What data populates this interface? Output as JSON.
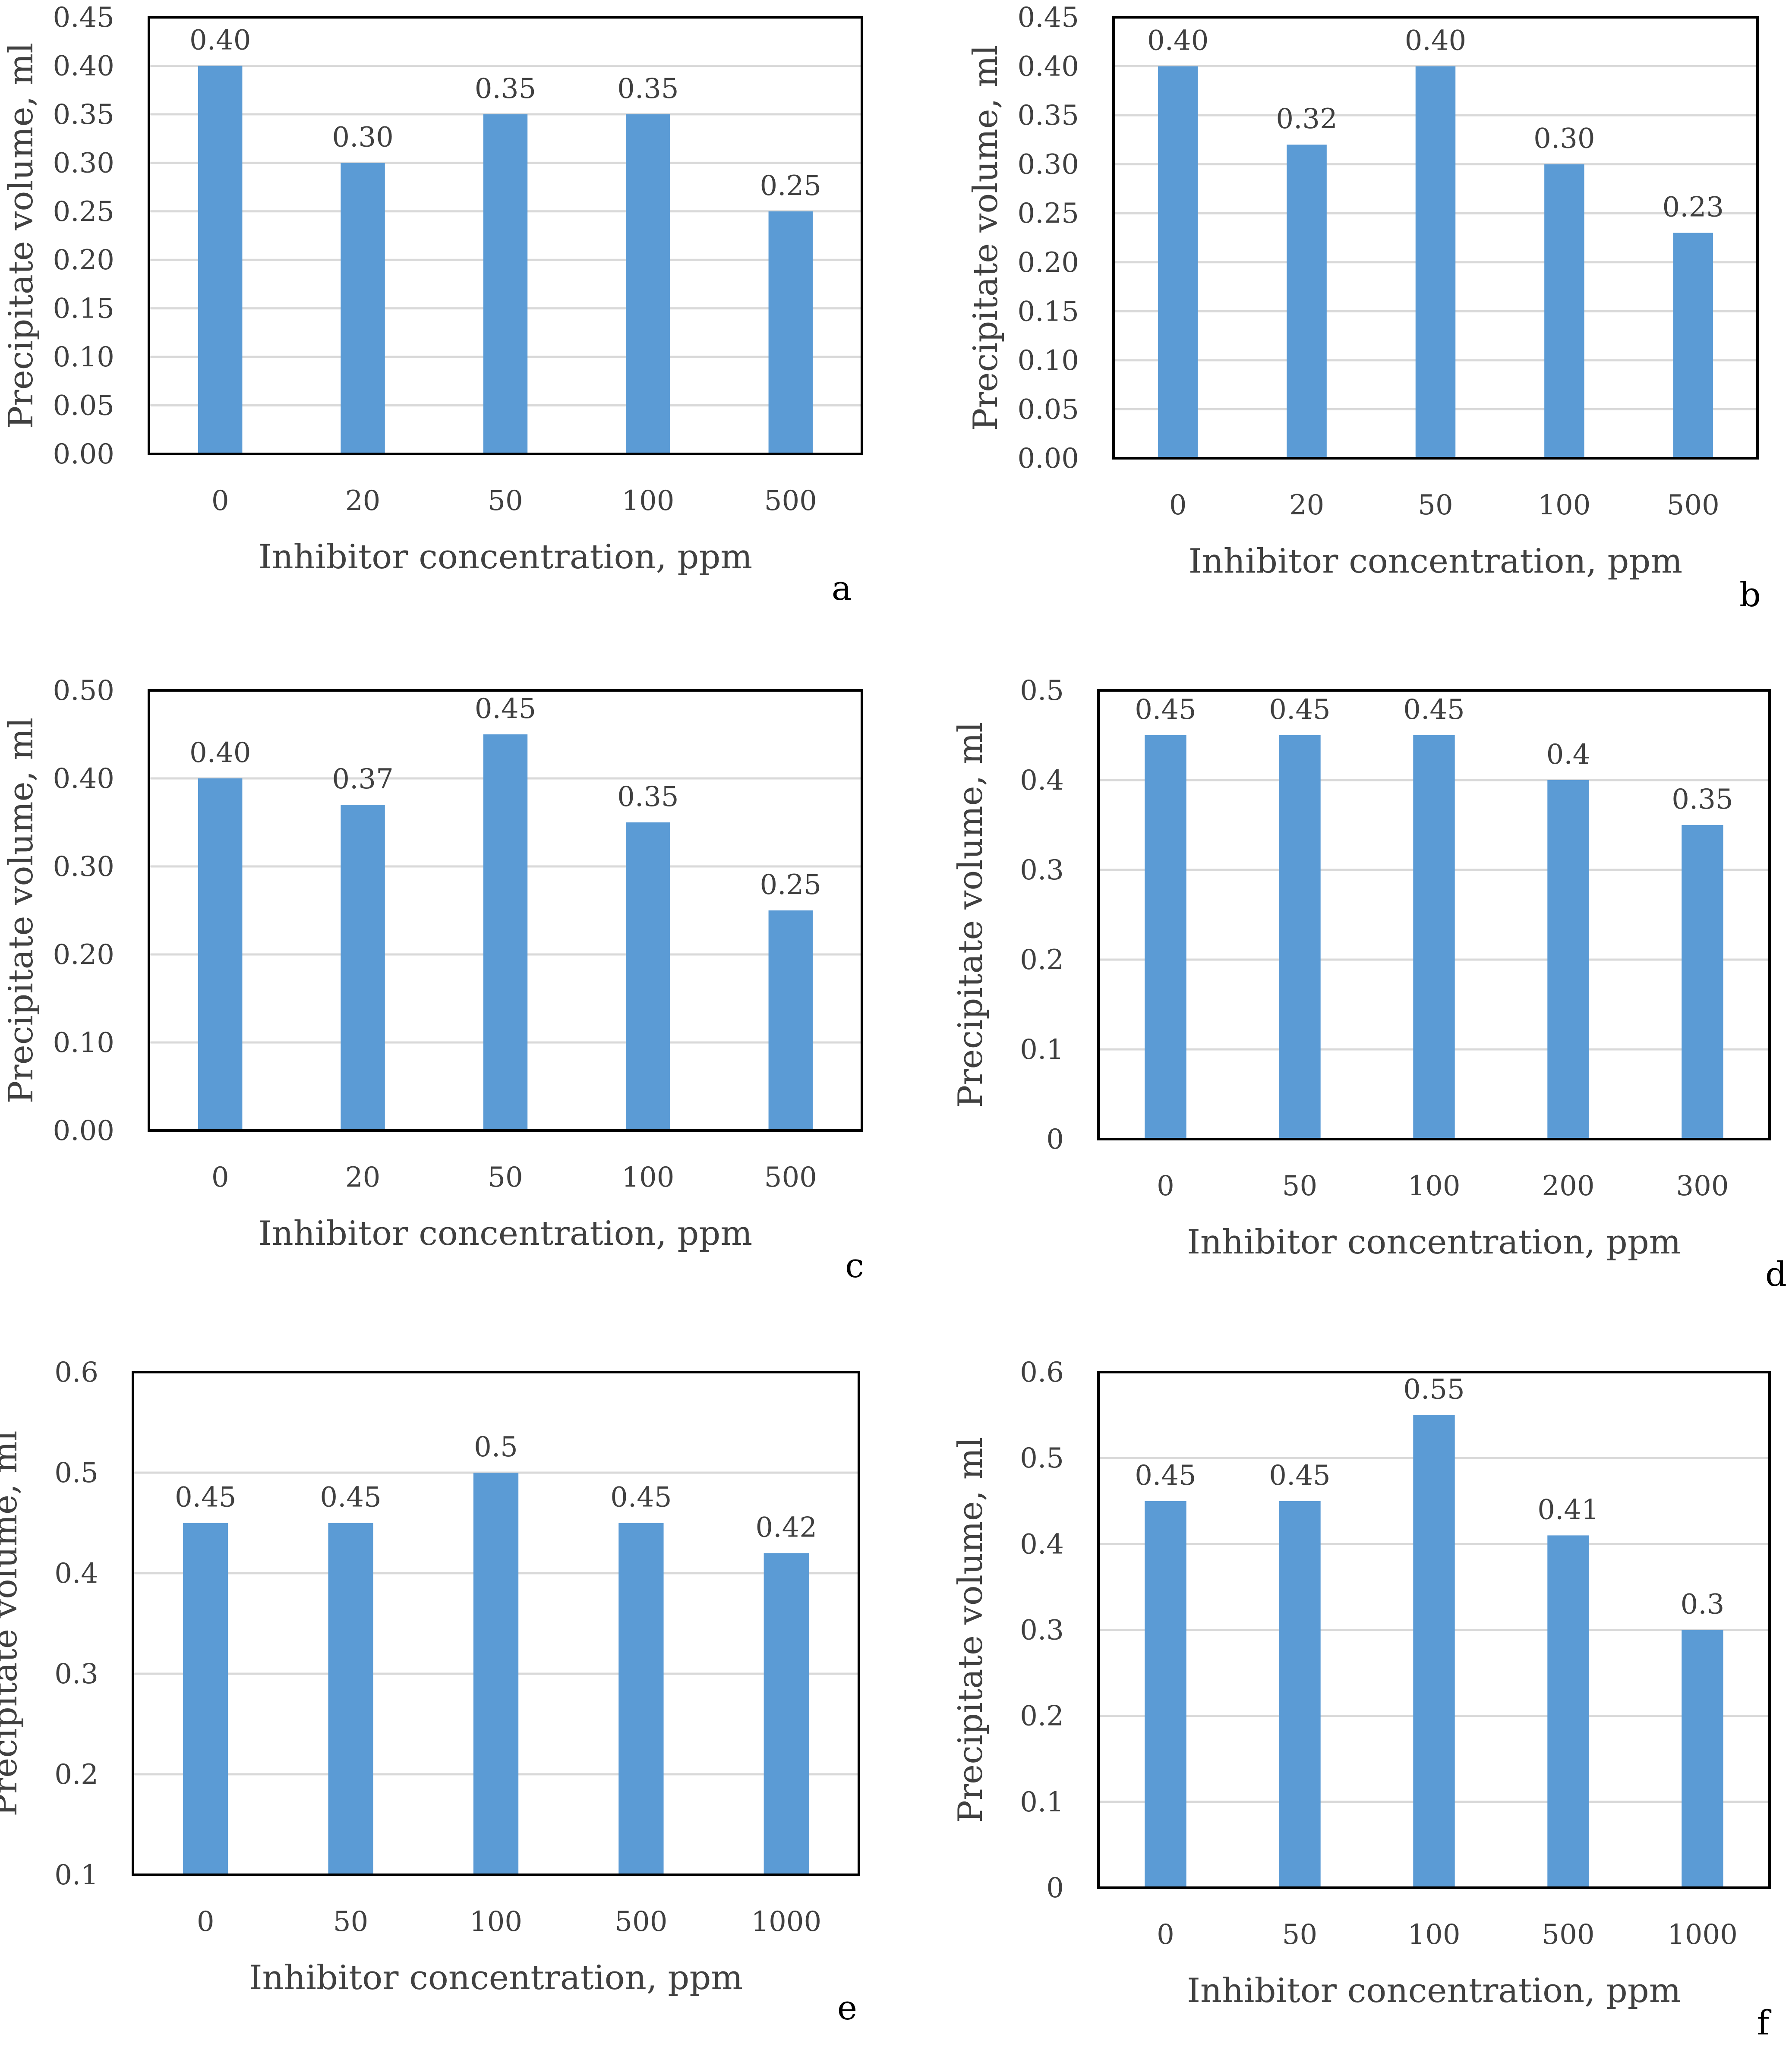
{
  "colors": {
    "bar": "#5b9bd5",
    "grid": "#d9d9d9",
    "frame": "#000000",
    "text": "#404040",
    "label": "#000000"
  },
  "chart_data": [
    {
      "panel": "a",
      "type": "bar",
      "xlabel": "Inhibitor concentration, ppm",
      "ylabel": "Precipitate volume, ml",
      "categories": [
        "0",
        "20",
        "50",
        "100",
        "500"
      ],
      "values": [
        0.4,
        0.3,
        0.35,
        0.35,
        0.25
      ],
      "value_labels": [
        "0.40",
        "0.30",
        "0.35",
        "0.35",
        "0.25"
      ],
      "ylim": [
        0,
        0.45
      ],
      "yticks": [
        "0.00",
        "0.05",
        "0.10",
        "0.15",
        "0.20",
        "0.25",
        "0.30",
        "0.35",
        "0.40",
        "0.45"
      ],
      "grid": true
    },
    {
      "panel": "b",
      "type": "bar",
      "xlabel": "Inhibitor concentration, ppm",
      "ylabel": "Precipitate volume, ml",
      "categories": [
        "0",
        "20",
        "50",
        "100",
        "500"
      ],
      "values": [
        0.4,
        0.32,
        0.4,
        0.3,
        0.23
      ],
      "value_labels": [
        "0.40",
        "0.32",
        "0.40",
        "0.30",
        "0.23"
      ],
      "ylim": [
        0,
        0.45
      ],
      "yticks": [
        "0.00",
        "0.05",
        "0.10",
        "0.15",
        "0.20",
        "0.25",
        "0.30",
        "0.35",
        "0.40",
        "0.45"
      ],
      "grid": true
    },
    {
      "panel": "c",
      "type": "bar",
      "xlabel": "Inhibitor concentration, ppm",
      "ylabel": "Precipitate volume, ml",
      "categories": [
        "0",
        "20",
        "50",
        "100",
        "500"
      ],
      "values": [
        0.4,
        0.37,
        0.45,
        0.35,
        0.25
      ],
      "value_labels": [
        "0.40",
        "0.37",
        "0.45",
        "0.35",
        "0.25"
      ],
      "ylim": [
        0,
        0.5
      ],
      "yticks": [
        "0.00",
        "0.10",
        "0.20",
        "0.30",
        "0.40",
        "0.50"
      ],
      "grid": true
    },
    {
      "panel": "d",
      "type": "bar",
      "xlabel": "Inhibitor concentration, ppm",
      "ylabel": "Precipitate volume, ml",
      "categories": [
        "0",
        "50",
        "100",
        "200",
        "300"
      ],
      "values": [
        0.45,
        0.45,
        0.45,
        0.4,
        0.35
      ],
      "value_labels": [
        "0.45",
        "0.45",
        "0.45",
        "0.4",
        "0.35"
      ],
      "ylim": [
        0,
        0.5
      ],
      "yticks": [
        "0",
        "0.1",
        "0.2",
        "0.3",
        "0.4",
        "0.5"
      ],
      "grid": true
    },
    {
      "panel": "e",
      "type": "bar",
      "xlabel": "Inhibitor concentration, ppm",
      "ylabel": "Precipitate volume, ml",
      "categories": [
        "0",
        "50",
        "100",
        "500",
        "1000"
      ],
      "values": [
        0.45,
        0.45,
        0.5,
        0.45,
        0.42
      ],
      "value_labels": [
        "0.45",
        "0.45",
        "0.5",
        "0.45",
        "0.42"
      ],
      "ylim": [
        0.1,
        0.6
      ],
      "yticks": [
        "0.1",
        "0.2",
        "0.3",
        "0.4",
        "0.5",
        "0.6"
      ],
      "grid": true
    },
    {
      "panel": "f",
      "type": "bar",
      "xlabel": "Inhibitor concentration, ppm",
      "ylabel": "Precipitate volume, ml",
      "categories": [
        "0",
        "50",
        "100",
        "500",
        "1000"
      ],
      "values": [
        0.45,
        0.45,
        0.55,
        0.41,
        0.3
      ],
      "value_labels": [
        "0.45",
        "0.45",
        "0.55",
        "0.41",
        "0.3"
      ],
      "ylim": [
        0,
        0.6
      ],
      "yticks": [
        "0",
        "0.1",
        "0.2",
        "0.3",
        "0.4",
        "0.5",
        "0.6"
      ],
      "grid": true
    }
  ]
}
